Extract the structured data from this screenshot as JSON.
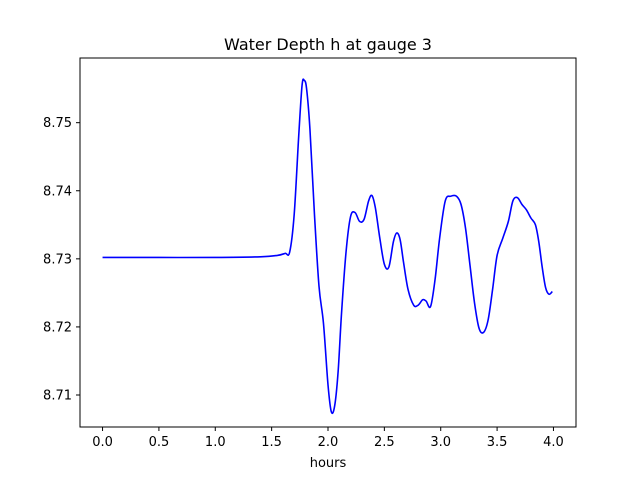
{
  "chart_data": {
    "type": "line",
    "title": "Water Depth h at gauge 3",
    "xlabel": "hours",
    "ylabel": "",
    "xlim": [
      -0.2,
      4.2
    ],
    "ylim": [
      8.7053,
      8.7595
    ],
    "xticks": [
      0.0,
      0.5,
      1.0,
      1.5,
      2.0,
      2.5,
      3.0,
      3.5,
      4.0
    ],
    "xtick_labels": [
      "0.0",
      "0.5",
      "1.0",
      "1.5",
      "2.0",
      "2.5",
      "3.0",
      "3.5",
      "4.0"
    ],
    "yticks": [
      8.71,
      8.72,
      8.73,
      8.74,
      8.75
    ],
    "ytick_labels": [
      "8.71",
      "8.72",
      "8.73",
      "8.74",
      "8.75"
    ],
    "grid": false,
    "series": [
      {
        "color": "#0000ff",
        "x": [
          0.0,
          0.5,
          1.0,
          1.4,
          1.55,
          1.62,
          1.66,
          1.7,
          1.74,
          1.77,
          1.79,
          1.81,
          1.84,
          1.88,
          1.92,
          1.96,
          2.0,
          2.03,
          2.06,
          2.09,
          2.12,
          2.16,
          2.2,
          2.24,
          2.28,
          2.32,
          2.36,
          2.39,
          2.42,
          2.46,
          2.5,
          2.54,
          2.58,
          2.61,
          2.64,
          2.67,
          2.71,
          2.76,
          2.8,
          2.84,
          2.87,
          2.91,
          2.95,
          2.99,
          3.04,
          3.09,
          3.14,
          3.18,
          3.22,
          3.26,
          3.3,
          3.34,
          3.38,
          3.42,
          3.46,
          3.5,
          3.55,
          3.6,
          3.64,
          3.68,
          3.72,
          3.76,
          3.8,
          3.84,
          3.87,
          3.9,
          3.93,
          3.96,
          3.99
        ],
        "y": [
          8.7302,
          8.7302,
          8.7302,
          8.7303,
          8.7305,
          8.7308,
          8.731,
          8.7365,
          8.748,
          8.7555,
          8.7562,
          8.755,
          8.749,
          8.7365,
          8.726,
          8.7205,
          8.7115,
          8.7075,
          8.7085,
          8.7135,
          8.722,
          8.731,
          8.7362,
          8.7368,
          8.7355,
          8.7358,
          8.7385,
          8.7393,
          8.7375,
          8.733,
          8.7292,
          8.7288,
          8.7325,
          8.7338,
          8.7328,
          8.7295,
          8.7255,
          8.7232,
          8.7232,
          8.724,
          8.7238,
          8.723,
          8.727,
          8.733,
          8.7385,
          8.7392,
          8.7392,
          8.738,
          8.7345,
          8.729,
          8.7235,
          8.7198,
          8.7192,
          8.721,
          8.7255,
          8.7305,
          8.733,
          8.7355,
          8.7385,
          8.739,
          8.738,
          8.7372,
          8.736,
          8.735,
          8.7325,
          8.7288,
          8.7258,
          8.7248,
          8.7252
        ]
      }
    ]
  }
}
